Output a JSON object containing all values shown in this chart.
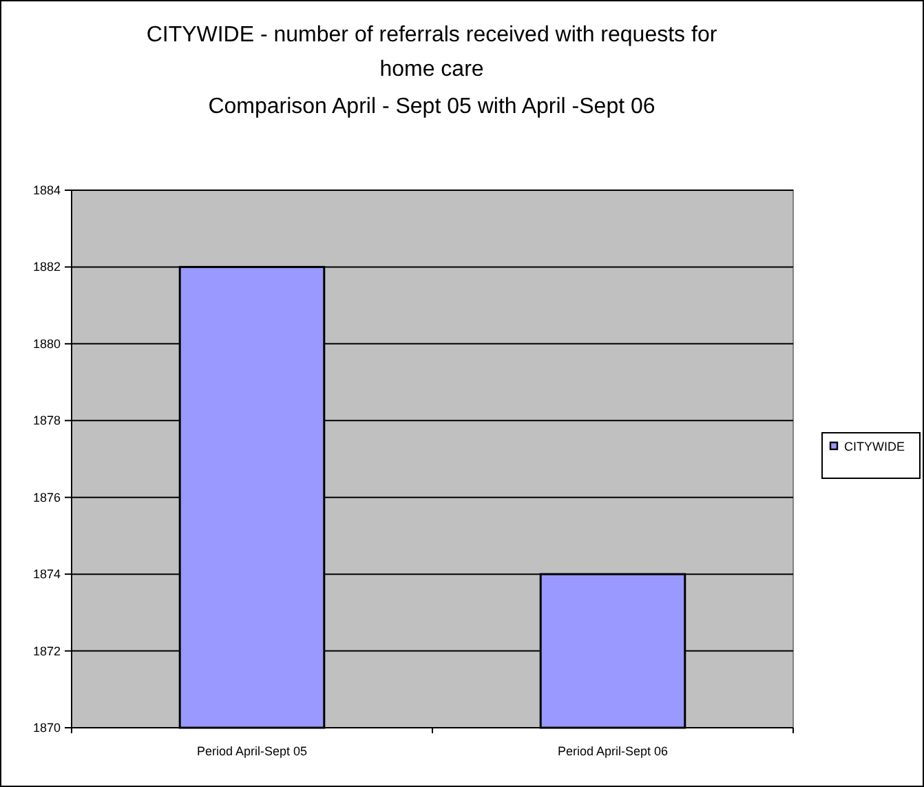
{
  "chart_data": {
    "type": "bar",
    "title": "CITYWIDE - number of referrals received with requests for home care",
    "subtitle": "Comparison April - Sept 05 with April -Sept 06",
    "categories": [
      "Period April-Sept 05",
      "Period April-Sept 06"
    ],
    "series": [
      {
        "name": "CITYWIDE",
        "color": "#9999ff",
        "values": [
          1882,
          1874
        ]
      }
    ],
    "ylim": [
      1870,
      1884
    ],
    "yticks": [
      1870,
      1872,
      1874,
      1876,
      1878,
      1880,
      1882,
      1884
    ],
    "grid": "y",
    "legend": "right"
  }
}
